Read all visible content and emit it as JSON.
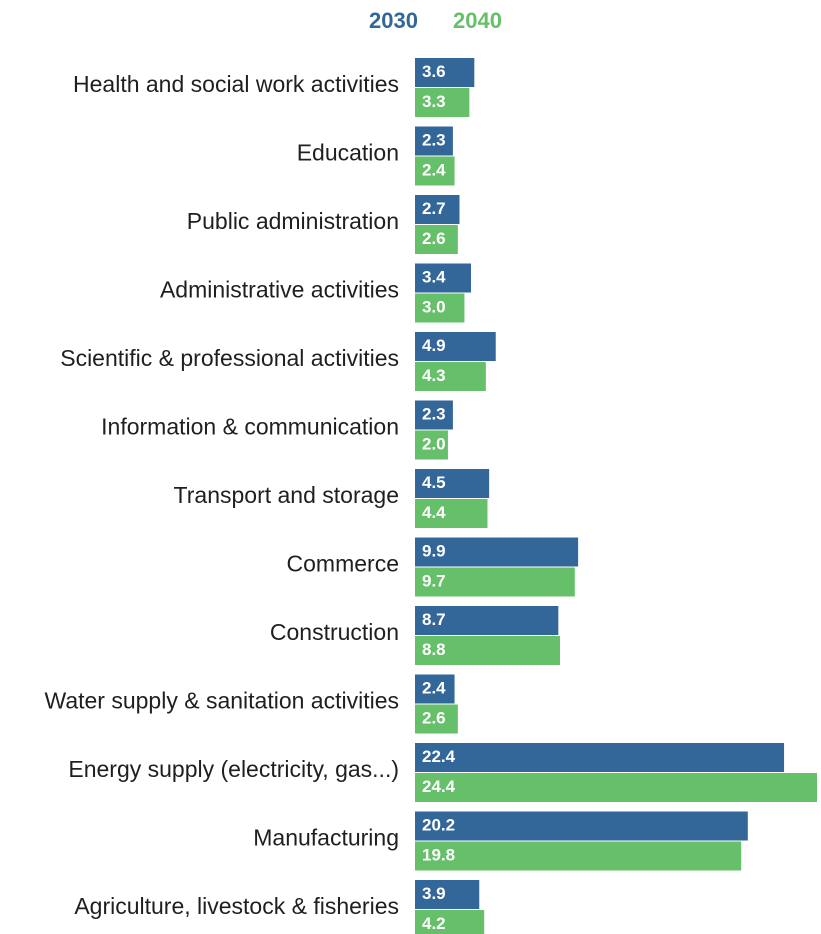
{
  "chart_data": {
    "type": "bar",
    "orientation": "horizontal",
    "categories": [
      "Health and social work activities",
      "Education",
      "Public administration",
      "Administrative activities",
      "Scientific & professional activities",
      "Information & communication",
      "Transport and storage",
      "Commerce",
      "Construction",
      "Water supply & sanitation activities",
      "Energy supply (electricity, gas...)",
      "Manufacturing",
      "Agriculture, livestock & fisheries"
    ],
    "series": [
      {
        "name": "2030",
        "color": "#336699",
        "values": [
          3.6,
          2.3,
          2.7,
          3.4,
          4.9,
          2.3,
          4.5,
          9.9,
          8.7,
          2.4,
          22.4,
          20.2,
          3.9
        ],
        "labels": [
          "3.6",
          "2.3",
          "2.7",
          "3.4",
          "4.9",
          "2.3",
          "4.5",
          "9.9",
          "8.7",
          "2.4",
          "22.4",
          "20.2",
          "3.9"
        ]
      },
      {
        "name": "2040",
        "color": "#66c06a",
        "values": [
          3.3,
          2.4,
          2.6,
          3.0,
          4.3,
          2.0,
          4.4,
          9.7,
          8.8,
          2.6,
          24.4,
          19.8,
          4.2
        ],
        "labels": [
          "3.3",
          "2.4",
          "2.6",
          "3.0",
          "4.3",
          "2.0",
          "4.4",
          "9.7",
          "8.8",
          "2.6",
          "24.4",
          "19.8",
          "4.2"
        ]
      }
    ],
    "legend_position": "top",
    "axis_visible": false,
    "grid": false,
    "title": "",
    "xlabel": "",
    "ylabel": ""
  }
}
